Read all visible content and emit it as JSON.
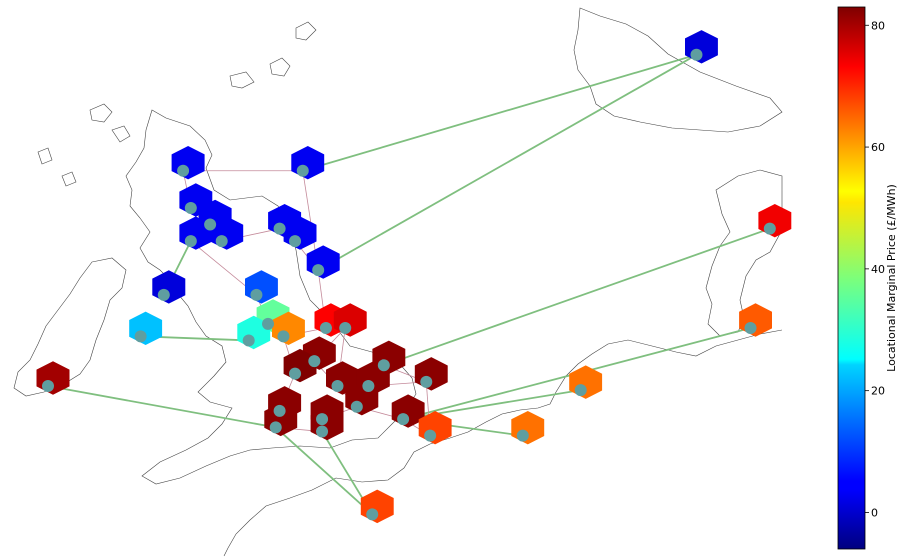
{
  "colorbar": {
    "label": "Locational Marginal Price (£/MWh)",
    "min": -6,
    "max": 83,
    "ticks": [
      "0",
      "20",
      "40",
      "60",
      "80"
    ],
    "tick_values": [
      0,
      20,
      40,
      60,
      80
    ],
    "colormap": "jet"
  },
  "chart_data": {
    "type": "map",
    "nodes": [
      {
        "id": "N1",
        "price": 80,
        "lon": -8.6,
        "lat": 52.4
      },
      {
        "id": "N2",
        "price": 22,
        "lon": -6.2,
        "lat": 53.6
      },
      {
        "id": "N3",
        "price": 2,
        "lon": -5.6,
        "lat": 54.6
      },
      {
        "id": "N4",
        "price": 4,
        "lon": -5.1,
        "lat": 57.6
      },
      {
        "id": "N5",
        "price": 4,
        "lon": -2.0,
        "lat": 57.6
      },
      {
        "id": "N6",
        "price": 4,
        "lon": -4.9,
        "lat": 56.7
      },
      {
        "id": "N7",
        "price": 4,
        "lon": -4.4,
        "lat": 56.3
      },
      {
        "id": "N8",
        "price": 4,
        "lon": -4.9,
        "lat": 55.9
      },
      {
        "id": "N9",
        "price": 4,
        "lon": -4.1,
        "lat": 55.9
      },
      {
        "id": "N10",
        "price": 4,
        "lon": -2.6,
        "lat": 56.2
      },
      {
        "id": "N11",
        "price": 4,
        "lon": -2.2,
        "lat": 55.9
      },
      {
        "id": "N12",
        "price": 4,
        "lon": -1.6,
        "lat": 55.2
      },
      {
        "id": "N13",
        "price": 12,
        "lon": -3.2,
        "lat": 54.6
      },
      {
        "id": "N14",
        "price": 36,
        "lon": -2.9,
        "lat": 53.9
      },
      {
        "id": "N15",
        "price": 30,
        "lon": -3.4,
        "lat": 53.5
      },
      {
        "id": "N16",
        "price": 60,
        "lon": -2.5,
        "lat": 53.6
      },
      {
        "id": "N17",
        "price": 72,
        "lon": -1.4,
        "lat": 53.8
      },
      {
        "id": "N18",
        "price": 75,
        "lon": -0.9,
        "lat": 53.8
      },
      {
        "id": "N19",
        "price": 82,
        "lon": -1.7,
        "lat": 53.0
      },
      {
        "id": "N20",
        "price": 83,
        "lon": -2.2,
        "lat": 52.7
      },
      {
        "id": "N21",
        "price": 82,
        "lon": -1.1,
        "lat": 52.4
      },
      {
        "id": "N22",
        "price": 82,
        "lon": -0.3,
        "lat": 52.4
      },
      {
        "id": "N23",
        "price": 82,
        "lon": 0.1,
        "lat": 52.9
      },
      {
        "id": "N24",
        "price": 82,
        "lon": 1.2,
        "lat": 52.5
      },
      {
        "id": "N25",
        "price": 82,
        "lon": -0.6,
        "lat": 51.9
      },
      {
        "id": "N26",
        "price": 82,
        "lon": -2.6,
        "lat": 51.8
      },
      {
        "id": "N27",
        "price": 82,
        "lon": -2.7,
        "lat": 51.4
      },
      {
        "id": "N28",
        "price": 82,
        "lon": -1.5,
        "lat": 51.6
      },
      {
        "id": "N29",
        "price": 82,
        "lon": -1.5,
        "lat": 51.3
      },
      {
        "id": "N30",
        "price": 82,
        "lon": 0.6,
        "lat": 51.6
      },
      {
        "id": "N31",
        "price": 66,
        "lon": 1.3,
        "lat": 51.2
      },
      {
        "id": "N32",
        "price": 62,
        "lon": 3.7,
        "lat": 51.2
      },
      {
        "id": "N33",
        "price": 62,
        "lon": 5.2,
        "lat": 52.3
      },
      {
        "id": "N34",
        "price": 64,
        "lon": 9.6,
        "lat": 53.8
      },
      {
        "id": "N35",
        "price": 73,
        "lon": 10.1,
        "lat": 56.2
      },
      {
        "id": "N36",
        "price": 66,
        "lon": -0.2,
        "lat": 49.3
      },
      {
        "id": "N37",
        "price": 2,
        "lon": 8.2,
        "lat": 60.4
      }
    ],
    "links": [
      [
        "N1",
        "N27",
        "dc"
      ],
      [
        "N2",
        "N15",
        "dc"
      ],
      [
        "N3",
        "N8",
        "dc"
      ],
      [
        "N5",
        "N37",
        "dc"
      ],
      [
        "N12",
        "N37",
        "dc"
      ],
      [
        "N23",
        "N35",
        "dc"
      ],
      [
        "N30",
        "N33",
        "dc"
      ],
      [
        "N30",
        "N34",
        "dc"
      ],
      [
        "N30",
        "N32",
        "dc"
      ],
      [
        "N29",
        "N36",
        "dc"
      ],
      [
        "N27",
        "N36",
        "dc"
      ],
      [
        "N4",
        "N5",
        "ac"
      ],
      [
        "N4",
        "N6",
        "ac"
      ],
      [
        "N6",
        "N7",
        "ac"
      ],
      [
        "N7",
        "N8",
        "ac"
      ],
      [
        "N7",
        "N9",
        "ac"
      ],
      [
        "N9",
        "N10",
        "ac"
      ],
      [
        "N10",
        "N11",
        "ac"
      ],
      [
        "N11",
        "N12",
        "ac"
      ],
      [
        "N5",
        "N12",
        "ac"
      ],
      [
        "N8",
        "N13",
        "ac"
      ],
      [
        "N12",
        "N17",
        "ac"
      ],
      [
        "N13",
        "N14",
        "ac"
      ],
      [
        "N14",
        "N15",
        "ac"
      ],
      [
        "N14",
        "N16",
        "ac"
      ],
      [
        "N16",
        "N17",
        "ac"
      ],
      [
        "N17",
        "N18",
        "ac"
      ],
      [
        "N16",
        "N20",
        "ac"
      ],
      [
        "N18",
        "N19",
        "ac"
      ],
      [
        "N19",
        "N20",
        "ac"
      ],
      [
        "N19",
        "N21",
        "ac"
      ],
      [
        "N21",
        "N22",
        "ac"
      ],
      [
        "N22",
        "N23",
        "ac"
      ],
      [
        "N23",
        "N24",
        "ac"
      ],
      [
        "N22",
        "N24",
        "ac"
      ],
      [
        "N20",
        "N26",
        "ac"
      ],
      [
        "N26",
        "N27",
        "ac"
      ],
      [
        "N25",
        "N28",
        "ac"
      ],
      [
        "N28",
        "N29",
        "ac"
      ],
      [
        "N25",
        "N30",
        "ac"
      ],
      [
        "N30",
        "N31",
        "ac"
      ],
      [
        "N21",
        "N25",
        "ac"
      ],
      [
        "N27",
        "N29",
        "ac"
      ],
      [
        "N18",
        "N21",
        "ac"
      ],
      [
        "N24",
        "N31",
        "ac"
      ],
      [
        "N6",
        "N9",
        "ac"
      ]
    ]
  }
}
